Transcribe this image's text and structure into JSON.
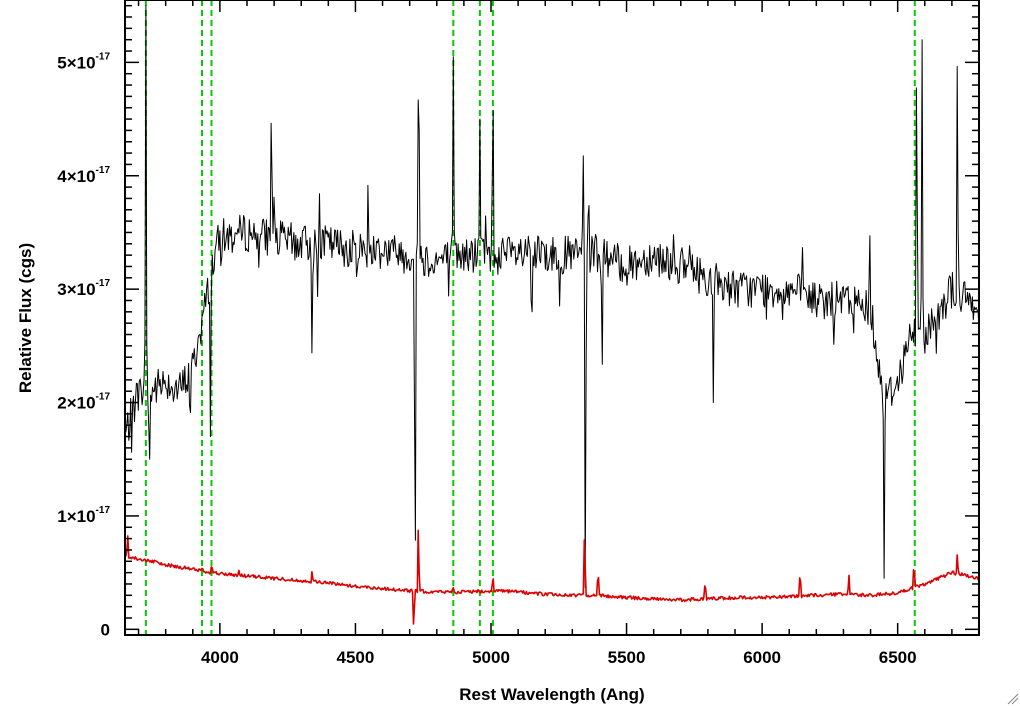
{
  "chart_data": {
    "type": "line",
    "title": "",
    "xlabel": "Rest Wavelength (Ang)",
    "ylabel": "Relative Flux (cgs)",
    "xlim": [
      3650,
      6800
    ],
    "ylim": [
      -0.05,
      5.55
    ],
    "y_scale_exponent": -17,
    "x_ticks": [
      4000,
      4500,
      5000,
      5500,
      6000,
      6500
    ],
    "x_tick_labels": [
      "4000",
      "4500",
      "5000",
      "5500",
      "6000",
      "6500"
    ],
    "y_ticks": [
      0,
      1,
      2,
      3,
      4,
      5
    ],
    "y_tick_labels": [
      {
        "mantissa": "0",
        "exponent": ""
      },
      {
        "mantissa": "1×10",
        "exponent": "-17"
      },
      {
        "mantissa": "2×10",
        "exponent": "-17"
      },
      {
        "mantissa": "3×10",
        "exponent": "-17"
      },
      {
        "mantissa": "4×10",
        "exponent": "-17"
      },
      {
        "mantissa": "5×10",
        "exponent": "-17"
      }
    ],
    "grid": false,
    "legend": "none",
    "vertical_lines": {
      "color": "#00cc00",
      "style": "dashed",
      "x": [
        3727,
        3934,
        3969,
        4861,
        4959,
        5007,
        6563
      ]
    },
    "series": [
      {
        "color": "#000000",
        "anchors_x": [
          3650,
          3700,
          3750,
          3800,
          3850,
          3900,
          3950,
          3980,
          4000,
          4100,
          4200,
          4300,
          4400,
          4500,
          4600,
          4700,
          4800,
          4900,
          5000,
          5100,
          5200,
          5300,
          5400,
          5500,
          5600,
          5700,
          5800,
          5900,
          6000,
          6100,
          6200,
          6300,
          6400,
          6450,
          6500,
          6550,
          6600,
          6700,
          6800
        ],
        "anchors_y": [
          1.7,
          2.1,
          2.1,
          2.2,
          2.1,
          2.3,
          2.9,
          3.3,
          3.45,
          3.5,
          3.45,
          3.4,
          3.4,
          3.35,
          3.35,
          3.3,
          3.25,
          3.3,
          3.3,
          3.3,
          3.3,
          3.3,
          3.3,
          3.2,
          3.3,
          3.2,
          3.1,
          3.0,
          3.0,
          3.0,
          2.9,
          2.9,
          2.85,
          2.0,
          2.2,
          2.6,
          2.6,
          3.0,
          2.8
        ],
        "noise": 0.17,
        "features": [
          {
            "x": 3727,
            "y": 5.5
          },
          {
            "x": 3740,
            "y": 1.3
          },
          {
            "x": 3890,
            "y": 1.7
          },
          {
            "x": 3965,
            "y": 1.7
          },
          {
            "x": 4190,
            "y": 4.8
          },
          {
            "x": 4340,
            "y": 2.3
          },
          {
            "x": 4720,
            "y": -0.05
          },
          {
            "x": 4733,
            "y": 5.5
          },
          {
            "x": 4861,
            "y": 5.05
          },
          {
            "x": 4959,
            "y": 4.5
          },
          {
            "x": 5007,
            "y": 5.0
          },
          {
            "x": 5150,
            "y": 2.5
          },
          {
            "x": 5340,
            "y": 4.3
          },
          {
            "x": 5348,
            "y": -0.05
          },
          {
            "x": 5360,
            "y": 4.0
          },
          {
            "x": 5410,
            "y": 2.2
          },
          {
            "x": 5820,
            "y": 2.0
          },
          {
            "x": 6450,
            "y": 0.45
          },
          {
            "x": 6570,
            "y": 5.5
          },
          {
            "x": 6590,
            "y": 5.2
          },
          {
            "x": 6720,
            "y": 5.25
          }
        ]
      },
      {
        "color": "#dd0000",
        "anchors_x": [
          3650,
          3700,
          3800,
          3900,
          4000,
          4100,
          4200,
          4300,
          4400,
          4500,
          4600,
          4700,
          4800,
          4900,
          5000,
          5100,
          5200,
          5300,
          5400,
          5500,
          5600,
          5700,
          5800,
          5900,
          6000,
          6100,
          6200,
          6300,
          6400,
          6500,
          6600,
          6700,
          6800
        ],
        "anchors_y": [
          0.65,
          0.62,
          0.57,
          0.53,
          0.49,
          0.47,
          0.45,
          0.43,
          0.41,
          0.38,
          0.36,
          0.34,
          0.33,
          0.33,
          0.34,
          0.33,
          0.31,
          0.3,
          0.3,
          0.28,
          0.27,
          0.26,
          0.27,
          0.28,
          0.28,
          0.29,
          0.3,
          0.31,
          0.3,
          0.32,
          0.4,
          0.5,
          0.45
        ],
        "noise": 0.015,
        "features": [
          {
            "x": 3660,
            "y": 0.85
          },
          {
            "x": 3760,
            "y": 0.62
          },
          {
            "x": 3935,
            "y": 0.55
          },
          {
            "x": 3970,
            "y": 0.58
          },
          {
            "x": 4070,
            "y": 0.52
          },
          {
            "x": 4340,
            "y": 0.52
          },
          {
            "x": 4715,
            "y": -0.05
          },
          {
            "x": 4732,
            "y": 0.95
          },
          {
            "x": 4860,
            "y": 0.38
          },
          {
            "x": 5007,
            "y": 0.48
          },
          {
            "x": 5345,
            "y": 0.95
          },
          {
            "x": 5395,
            "y": 0.55
          },
          {
            "x": 5790,
            "y": 0.45
          },
          {
            "x": 6140,
            "y": 0.55
          },
          {
            "x": 6320,
            "y": 0.5
          },
          {
            "x": 6560,
            "y": 0.62
          },
          {
            "x": 6720,
            "y": 0.68
          }
        ]
      }
    ]
  }
}
